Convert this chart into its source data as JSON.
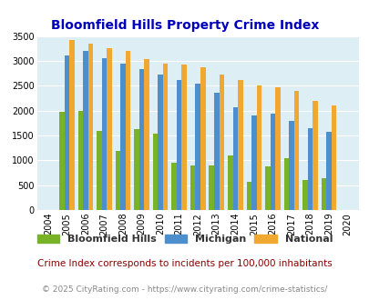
{
  "title": "Bloomfield Hills Property Crime Index",
  "years": [
    2004,
    2005,
    2006,
    2007,
    2008,
    2009,
    2010,
    2011,
    2012,
    2013,
    2014,
    2015,
    2016,
    2017,
    2018,
    2019,
    2020
  ],
  "bloomfield_hills": [
    0,
    1970,
    2000,
    1600,
    1180,
    1630,
    1530,
    960,
    890,
    900,
    1100,
    560,
    880,
    1040,
    610,
    640,
    0
  ],
  "michigan": [
    0,
    3100,
    3200,
    3060,
    2940,
    2840,
    2720,
    2620,
    2540,
    2350,
    2060,
    1900,
    1930,
    1800,
    1640,
    1570,
    0
  ],
  "national": [
    0,
    3420,
    3340,
    3260,
    3200,
    3040,
    2940,
    2920,
    2870,
    2730,
    2610,
    2500,
    2470,
    2390,
    2200,
    2110,
    0
  ],
  "bloomfield_color": "#77b227",
  "michigan_color": "#4d8fcc",
  "national_color": "#f0a830",
  "background_color": "#deeef5",
  "title_color": "#0000bb",
  "ylim": [
    0,
    3500
  ],
  "yticks": [
    0,
    500,
    1000,
    1500,
    2000,
    2500,
    3000,
    3500
  ],
  "bar_width": 0.27,
  "subtitle": "Crime Index corresponds to incidents per 100,000 inhabitants",
  "footer": "© 2025 CityRating.com - https://www.cityrating.com/crime-statistics/",
  "subtitle_color": "#880000",
  "footer_color": "#888888",
  "legend_labels": [
    "Bloomfield Hills",
    "Michigan",
    "National"
  ]
}
